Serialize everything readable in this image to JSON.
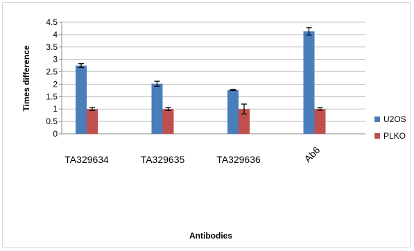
{
  "chart_data": {
    "type": "bar",
    "title": "",
    "xlabel": "Antibodies",
    "ylabel": "Times difference",
    "categories": [
      "TA329634",
      "TA329635",
      "TA329636",
      "Ab6"
    ],
    "series": [
      {
        "name": "U2OS",
        "color": "#4a7ebb",
        "values": [
          2.75,
          2.02,
          1.77,
          4.13
        ],
        "errors": [
          0.08,
          0.1,
          0.02,
          0.15
        ]
      },
      {
        "name": "PLKO",
        "color": "#c0504d",
        "values": [
          1.0,
          1.0,
          1.0,
          1.0
        ],
        "errors": [
          0.06,
          0.06,
          0.2,
          0.05
        ]
      }
    ],
    "ylim": [
      0,
      4.5
    ],
    "yticks": [
      "0",
      "0.5",
      "1",
      "1.5",
      "2",
      "2.5",
      "3",
      "3.5",
      "4",
      "4.5"
    ],
    "grid": true,
    "legend_position": "right",
    "rotated_category": "Ab6"
  }
}
